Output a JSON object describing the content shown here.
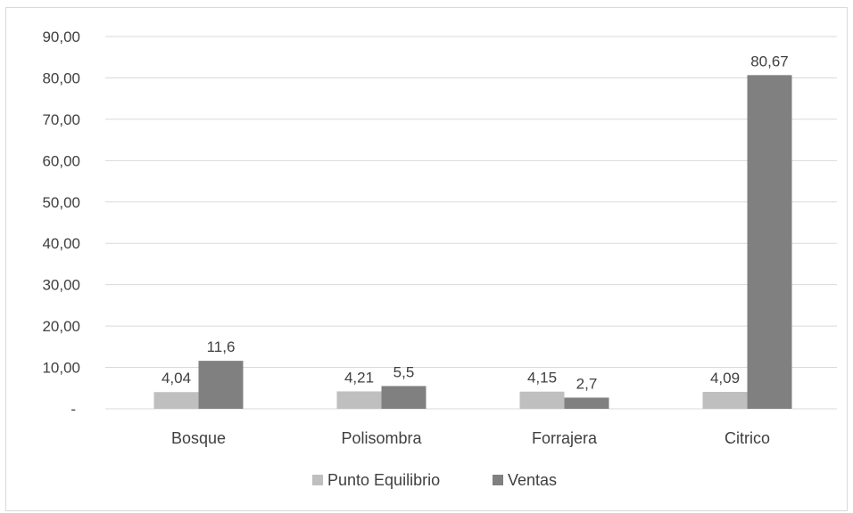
{
  "chart_data": {
    "type": "bar",
    "title": "",
    "xlabel": "",
    "ylabel": "",
    "ylim": [
      0,
      90
    ],
    "yticks": [
      0,
      10,
      20,
      30,
      40,
      50,
      60,
      70,
      80,
      90
    ],
    "ytick_labels": [
      "-",
      "10,00",
      "20,00",
      "30,00",
      "40,00",
      "50,00",
      "60,00",
      "70,00",
      "80,00",
      "90,00"
    ],
    "categories": [
      "Bosque",
      "Polisombra",
      "Forrajera",
      "Citrico"
    ],
    "series": [
      {
        "name": "Punto Equilibrio",
        "color": "#bfbfbf",
        "values": [
          4.04,
          4.21,
          4.15,
          4.09
        ],
        "labels": [
          "4,04",
          "4,21",
          "4,15",
          "4,09"
        ]
      },
      {
        "name": "Ventas",
        "color": "#808080",
        "values": [
          11.6,
          5.5,
          2.7,
          80.67
        ],
        "labels": [
          "11,6",
          "5,5",
          "2,7",
          "80,67"
        ]
      }
    ],
    "grid": true,
    "legend_position": "bottom"
  }
}
